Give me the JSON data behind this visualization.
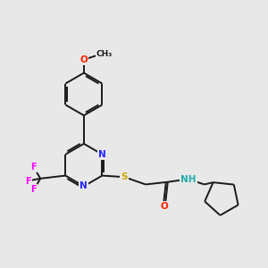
{
  "background_color": "#e8e8e8",
  "bond_color": "#1a1a1a",
  "atom_colors": {
    "N": "#2222ff",
    "O": "#ff2200",
    "S": "#ccaa00",
    "F": "#ff00ff",
    "H": "#22aaaa",
    "C": "#1a1a1a"
  },
  "lw": 1.4,
  "dbo": 0.06
}
